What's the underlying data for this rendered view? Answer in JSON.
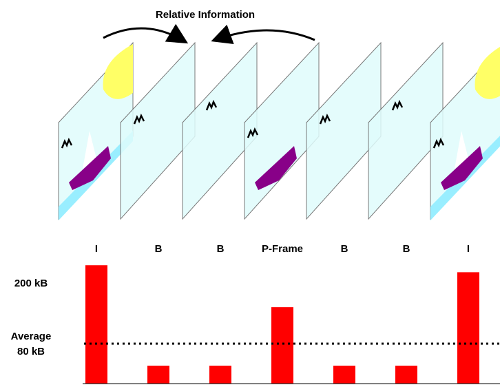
{
  "chart_data": {
    "type": "bar",
    "title": "Relative Information",
    "categories": [
      "I",
      "B",
      "B",
      "P-Frame",
      "B",
      "B",
      "I"
    ],
    "values": [
      237,
      36,
      36,
      153,
      36,
      36,
      223
    ],
    "color": "#ff0000",
    "ylim": [
      0,
      240
    ],
    "yticks": [
      {
        "value": 200,
        "label": "200 kB"
      }
    ],
    "average": {
      "value": 80,
      "label": [
        "Average",
        "80 kB"
      ]
    }
  }
}
